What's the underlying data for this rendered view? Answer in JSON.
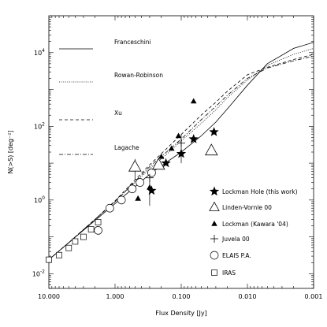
{
  "chart_data": {
    "type": "scatter",
    "title": "",
    "xlabel": "Flux Density [Jy]",
    "ylabel": "N(>S) [deg⁻²]",
    "x_scale": "log",
    "y_scale": "log",
    "x_reversed": true,
    "xlim": [
      10.0,
      0.001
    ],
    "ylim": [
      0.004,
      100000
    ],
    "x_ticks": [
      {
        "value": 10,
        "label": "10.000"
      },
      {
        "value": 1,
        "label": "1.000"
      },
      {
        "value": 0.1,
        "label": "0.100"
      },
      {
        "value": 0.01,
        "label": "0.010"
      },
      {
        "value": 0.001,
        "label": "0.001"
      }
    ],
    "y_ticks": [
      {
        "value": 0.01,
        "base": "10",
        "exp": "-2"
      },
      {
        "value": 1,
        "base": "10",
        "exp": "0"
      },
      {
        "value": 100,
        "base": "10",
        "exp": "2"
      },
      {
        "value": 10000,
        "base": "10",
        "exp": "4"
      }
    ],
    "grid": false,
    "legend_placement": "left",
    "models": [
      {
        "name": "Franceschini",
        "dash": "solid",
        "points": [
          [
            10,
            0.024
          ],
          [
            5,
            0.07
          ],
          [
            2,
            0.28
          ],
          [
            1,
            0.8
          ],
          [
            0.5,
            2.3
          ],
          [
            0.3,
            5
          ],
          [
            0.2,
            8.5
          ],
          [
            0.1,
            20
          ],
          [
            0.05,
            55
          ],
          [
            0.03,
            130
          ],
          [
            0.02,
            300
          ],
          [
            0.01,
            1300
          ],
          [
            0.005,
            5000
          ],
          [
            0.002,
            13000
          ],
          [
            0.001,
            19000
          ]
        ]
      },
      {
        "name": "Rowan-Robinson",
        "dash": "dotted",
        "points": [
          [
            10,
            0.024
          ],
          [
            5,
            0.07
          ],
          [
            2,
            0.3
          ],
          [
            1,
            0.9
          ],
          [
            0.5,
            3
          ],
          [
            0.3,
            7
          ],
          [
            0.2,
            13
          ],
          [
            0.1,
            40
          ],
          [
            0.05,
            120
          ],
          [
            0.03,
            280
          ],
          [
            0.02,
            600
          ],
          [
            0.01,
            1800
          ],
          [
            0.005,
            4500
          ],
          [
            0.002,
            9000
          ],
          [
            0.001,
            13000
          ]
        ]
      },
      {
        "name": "Xu",
        "dash": "dashed",
        "points": [
          [
            10,
            0.024
          ],
          [
            5,
            0.07
          ],
          [
            2,
            0.3
          ],
          [
            1,
            0.95
          ],
          [
            0.5,
            3.5
          ],
          [
            0.3,
            9
          ],
          [
            0.2,
            18
          ],
          [
            0.1,
            60
          ],
          [
            0.05,
            200
          ],
          [
            0.03,
            450
          ],
          [
            0.02,
            900
          ],
          [
            0.01,
            2500
          ],
          [
            0.005,
            4000
          ],
          [
            0.002,
            6500
          ],
          [
            0.001,
            9000
          ]
        ]
      },
      {
        "name": "Lagache",
        "dash": "dashdot",
        "points": [
          [
            10,
            0.024
          ],
          [
            5,
            0.07
          ],
          [
            2,
            0.3
          ],
          [
            1,
            0.9
          ],
          [
            0.5,
            3.2
          ],
          [
            0.3,
            8
          ],
          [
            0.2,
            15
          ],
          [
            0.1,
            45
          ],
          [
            0.05,
            150
          ],
          [
            0.03,
            350
          ],
          [
            0.02,
            700
          ],
          [
            0.01,
            2000
          ],
          [
            0.005,
            3800
          ],
          [
            0.002,
            6000
          ],
          [
            0.001,
            8000
          ]
        ]
      }
    ],
    "datasets": [
      {
        "name": "Lockman Hole (this work)",
        "marker": "filled-star",
        "points": [
          [
            0.28,
            1.8
          ],
          [
            0.17,
            10
          ],
          [
            0.1,
            18
          ],
          [
            0.065,
            45
          ],
          [
            0.032,
            70
          ]
        ]
      },
      {
        "name": "Linden-Vornle 00",
        "marker": "open-triangle",
        "points": [
          [
            0.5,
            8
          ],
          [
            0.22,
            9
          ],
          [
            0.035,
            22
          ]
        ]
      },
      {
        "name": "Lockman (Kawara '04)",
        "marker": "filled-triangle",
        "points": [
          [
            0.45,
            1.1
          ],
          [
            0.3,
            2.2
          ],
          [
            0.2,
            15
          ],
          [
            0.14,
            25
          ],
          [
            0.11,
            55
          ],
          [
            0.065,
            480
          ]
        ]
      },
      {
        "name": "Juvela 00",
        "marker": "plus",
        "points": [
          [
            0.3,
            4
          ],
          [
            0.1,
            35
          ]
        ]
      },
      {
        "name": "ELAIS P.A.",
        "marker": "open-circle",
        "points": [
          [
            1.8,
            0.15
          ],
          [
            1.2,
            0.6
          ],
          [
            0.8,
            1.0
          ],
          [
            0.55,
            2.0
          ],
          [
            0.42,
            3.0
          ],
          [
            0.28,
            5.5
          ]
        ]
      },
      {
        "name": "IRAS",
        "marker": "open-square",
        "points": [
          [
            10,
            0.024
          ],
          [
            7,
            0.032
          ],
          [
            5,
            0.05
          ],
          [
            4,
            0.075
          ],
          [
            3,
            0.1
          ],
          [
            2.3,
            0.16
          ],
          [
            1.8,
            0.25
          ]
        ]
      }
    ],
    "error_bars": [
      {
        "x": 0.3,
        "y_low": 0.7,
        "y_high": 7
      },
      {
        "x": 0.5,
        "y_low": 3.5,
        "y_high": 13
      },
      {
        "x": 0.1,
        "y_low": 10,
        "y_high": 60
      }
    ]
  }
}
